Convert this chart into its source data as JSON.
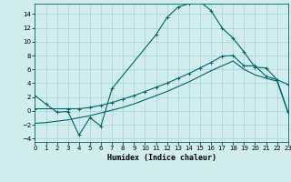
{
  "xlabel": "Humidex (Indice chaleur)",
  "bg_color": "#d0ecec",
  "grid_color": "#a8d4d4",
  "line_color": "#006666",
  "xlim": [
    0,
    23
  ],
  "ylim": [
    -4.5,
    15.5
  ],
  "xticks": [
    0,
    1,
    2,
    3,
    4,
    5,
    6,
    7,
    8,
    9,
    10,
    11,
    12,
    13,
    14,
    15,
    16,
    17,
    18,
    19,
    20,
    21,
    22,
    23
  ],
  "yticks": [
    -4,
    -2,
    0,
    2,
    4,
    6,
    8,
    10,
    12,
    14
  ],
  "curve_main_x": [
    0,
    1,
    2,
    3,
    4,
    5,
    6,
    7,
    11,
    12,
    13,
    14,
    15,
    16,
    17,
    18,
    19,
    20,
    21,
    22,
    23
  ],
  "curve_main_y": [
    2.2,
    1.0,
    -0.2,
    -0.1,
    -3.5,
    -1.0,
    -2.2,
    3.2,
    11.0,
    13.5,
    15.0,
    15.5,
    15.8,
    14.5,
    12.0,
    10.5,
    8.5,
    6.3,
    6.2,
    4.5,
    3.8
  ],
  "curve_upper_x": [
    0,
    3,
    4,
    5,
    6,
    7,
    8,
    9,
    10,
    11,
    12,
    13,
    14,
    15,
    16,
    17,
    18,
    19,
    20,
    21,
    22,
    23
  ],
  "curve_upper_y": [
    0.3,
    0.3,
    0.3,
    0.5,
    0.8,
    1.2,
    1.7,
    2.2,
    2.8,
    3.4,
    4.0,
    4.7,
    5.4,
    6.2,
    7.0,
    7.9,
    8.0,
    6.5,
    6.5,
    5.0,
    4.5,
    -0.2
  ],
  "curve_lower_x": [
    0,
    1,
    2,
    3,
    4,
    5,
    6,
    7,
    8,
    9,
    10,
    11,
    12,
    13,
    14,
    15,
    16,
    17,
    18,
    19,
    20,
    21,
    22,
    23
  ],
  "curve_lower_y": [
    -1.8,
    -1.7,
    -1.5,
    -1.3,
    -1.0,
    -0.7,
    -0.3,
    0.1,
    0.5,
    1.0,
    1.6,
    2.2,
    2.8,
    3.5,
    4.2,
    5.0,
    5.8,
    6.5,
    7.2,
    6.0,
    5.2,
    4.7,
    4.3,
    -0.3
  ]
}
